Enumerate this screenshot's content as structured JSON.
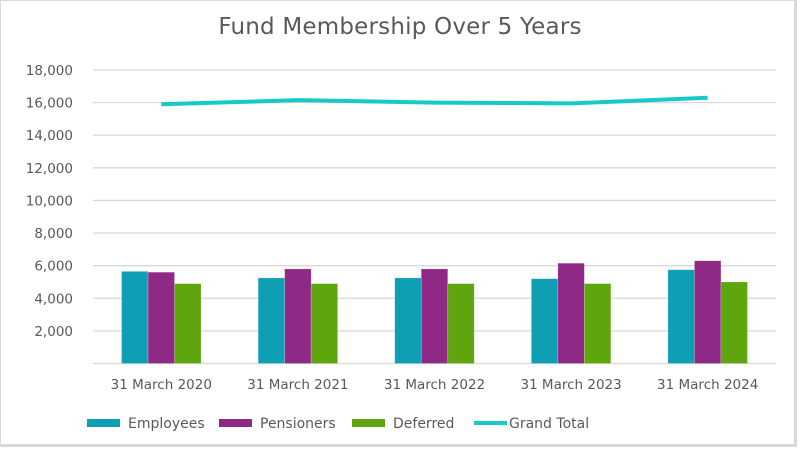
{
  "chart_data": {
    "type": "bar",
    "title": "Fund Membership Over 5 Years",
    "xlabel": "",
    "ylabel": "",
    "categories": [
      "31 March 2020",
      "31 March 2021",
      "31 March 2022",
      "31 March 2023",
      "31 March 2024"
    ],
    "series": [
      {
        "name": "Employees",
        "type": "bar",
        "color": "#0e9fb4",
        "values": [
          5650,
          5250,
          5250,
          5200,
          5750
        ]
      },
      {
        "name": "Pensioners",
        "type": "bar",
        "color": "#8e2a86",
        "values": [
          5600,
          5800,
          5800,
          6150,
          6300
        ]
      },
      {
        "name": "Deferred",
        "type": "bar",
        "color": "#5fa60e",
        "values": [
          4900,
          4900,
          4900,
          4900,
          5000
        ]
      },
      {
        "name": "Grand Total",
        "type": "line",
        "color": "#17c9c9",
        "values": [
          15900,
          16150,
          16000,
          15950,
          16300
        ]
      }
    ],
    "ylim": [
      0,
      18000
    ],
    "yticks": [
      2000,
      4000,
      6000,
      8000,
      10000,
      12000,
      14000,
      16000,
      18000
    ],
    "ytick_labels": [
      "2,000",
      "4,000",
      "6,000",
      "8,000",
      "10,000",
      "12,000",
      "14,000",
      "16,000",
      "18,000"
    ],
    "grid": true,
    "legend_position": "bottom"
  }
}
